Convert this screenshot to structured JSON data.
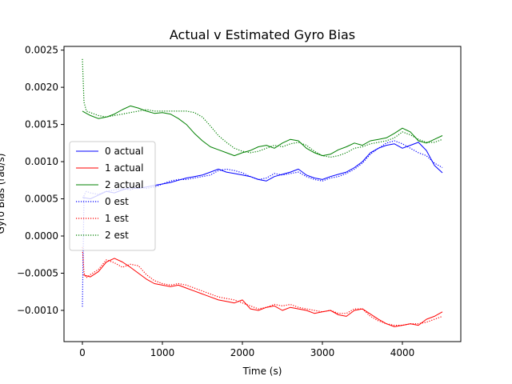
{
  "chart_data": {
    "type": "line",
    "title": "Actual v Estimated Gyro Bias",
    "xlabel": "Time (s)",
    "ylabel": "Gyro Bias (rad/s)",
    "xlim": [
      -230,
      4730
    ],
    "ylim": [
      -0.00142,
      0.00255
    ],
    "xticks": [
      0,
      1000,
      2000,
      3000,
      4000
    ],
    "xtick_labels": [
      "0",
      "1000",
      "2000",
      "3000",
      "4000"
    ],
    "yticks": [
      -0.001,
      -0.0005,
      0.0,
      0.0005,
      0.001,
      0.0015,
      0.002,
      0.0025
    ],
    "ytick_labels": [
      "−0.0010",
      "−0.0005",
      "0.0000",
      "0.0005",
      "0.0010",
      "0.0015",
      "0.0020",
      "0.0025"
    ],
    "grid": false,
    "legend_position": "center-left",
    "series": [
      {
        "name": "0 actual",
        "color": "#0000ff",
        "style": "solid",
        "x": [
          0,
          100,
          200,
          300,
          400,
          500,
          600,
          700,
          800,
          900,
          1000,
          1100,
          1200,
          1300,
          1400,
          1500,
          1600,
          1700,
          1800,
          1900,
          2000,
          2100,
          2200,
          2300,
          2400,
          2500,
          2600,
          2700,
          2800,
          2900,
          3000,
          3100,
          3200,
          3300,
          3400,
          3500,
          3600,
          3700,
          3800,
          3900,
          4000,
          4100,
          4200,
          4300,
          4400,
          4500
        ],
        "y": [
          0.00052,
          0.0005,
          0.00055,
          0.0006,
          0.00058,
          0.00062,
          0.00065,
          0.00064,
          0.00066,
          0.00068,
          0.0007,
          0.00072,
          0.00075,
          0.00078,
          0.0008,
          0.00082,
          0.00086,
          0.0009,
          0.00086,
          0.00084,
          0.00082,
          0.0008,
          0.00076,
          0.00074,
          0.0008,
          0.00083,
          0.00086,
          0.0009,
          0.00082,
          0.00078,
          0.00076,
          0.0008,
          0.00083,
          0.00086,
          0.00092,
          0.001,
          0.00112,
          0.00118,
          0.00122,
          0.00124,
          0.00118,
          0.00122,
          0.00126,
          0.00115,
          0.00095,
          0.00085
        ]
      },
      {
        "name": "1 actual",
        "color": "#ff0000",
        "style": "solid",
        "x": [
          0,
          100,
          200,
          300,
          400,
          500,
          600,
          700,
          800,
          900,
          1000,
          1100,
          1200,
          1300,
          1400,
          1500,
          1600,
          1700,
          1800,
          1900,
          2000,
          2100,
          2200,
          2300,
          2400,
          2500,
          2600,
          2700,
          2800,
          2900,
          3000,
          3100,
          3200,
          3300,
          3400,
          3500,
          3600,
          3700,
          3800,
          3900,
          4000,
          4100,
          4200,
          4300,
          4400,
          4500
        ],
        "y": [
          -0.00052,
          -0.00055,
          -0.00048,
          -0.00035,
          -0.0003,
          -0.00035,
          -0.00042,
          -0.0005,
          -0.00058,
          -0.00064,
          -0.00066,
          -0.00068,
          -0.00066,
          -0.0007,
          -0.00074,
          -0.00078,
          -0.00082,
          -0.00086,
          -0.00088,
          -0.0009,
          -0.00086,
          -0.00098,
          -0.001,
          -0.00096,
          -0.00094,
          -0.001,
          -0.00096,
          -0.00098,
          -0.001,
          -0.00104,
          -0.00102,
          -0.001,
          -0.00106,
          -0.00108,
          -0.001,
          -0.00098,
          -0.00105,
          -0.00112,
          -0.00118,
          -0.00122,
          -0.0012,
          -0.00118,
          -0.0012,
          -0.00112,
          -0.00108,
          -0.00102
        ]
      },
      {
        "name": "2 actual",
        "color": "#008000",
        "style": "solid",
        "x": [
          0,
          100,
          200,
          300,
          400,
          500,
          600,
          700,
          800,
          900,
          1000,
          1100,
          1200,
          1300,
          1400,
          1500,
          1600,
          1700,
          1800,
          1900,
          2000,
          2100,
          2200,
          2300,
          2400,
          2500,
          2600,
          2700,
          2800,
          2900,
          3000,
          3100,
          3200,
          3300,
          3400,
          3500,
          3600,
          3700,
          3800,
          3900,
          4000,
          4100,
          4200,
          4300,
          4400,
          4500
        ],
        "y": [
          0.00168,
          0.00162,
          0.00158,
          0.0016,
          0.00164,
          0.0017,
          0.00175,
          0.00172,
          0.00168,
          0.00165,
          0.00166,
          0.00164,
          0.00158,
          0.0015,
          0.00138,
          0.00128,
          0.0012,
          0.00116,
          0.00112,
          0.00108,
          0.00112,
          0.00115,
          0.0012,
          0.00122,
          0.00118,
          0.00125,
          0.0013,
          0.00128,
          0.00118,
          0.00112,
          0.00108,
          0.0011,
          0.00116,
          0.0012,
          0.00125,
          0.00122,
          0.00128,
          0.0013,
          0.00132,
          0.00138,
          0.00145,
          0.0014,
          0.00128,
          0.00125,
          0.0013,
          0.00135
        ]
      },
      {
        "name": "0 est",
        "color": "#0000ff",
        "style": "dotted",
        "x": [
          0,
          20,
          50,
          100,
          200,
          300,
          400,
          500,
          600,
          700,
          800,
          900,
          1000,
          1100,
          1200,
          1300,
          1400,
          1500,
          1600,
          1700,
          1800,
          1900,
          2000,
          2100,
          2200,
          2300,
          2400,
          2500,
          2600,
          2700,
          2800,
          2900,
          3000,
          3100,
          3200,
          3300,
          3400,
          3500,
          3600,
          3700,
          3800,
          3900,
          4000,
          4100,
          4200,
          4300,
          4400,
          4500
        ],
        "y": [
          -0.00095,
          0.00055,
          0.0006,
          0.00058,
          0.00056,
          0.0006,
          0.00062,
          0.00064,
          0.00062,
          0.00066,
          0.00064,
          0.00066,
          0.0007,
          0.00074,
          0.00076,
          0.00076,
          0.00078,
          0.0008,
          0.00082,
          0.00088,
          0.0009,
          0.00088,
          0.00085,
          0.0008,
          0.00076,
          0.00078,
          0.00084,
          0.00082,
          0.00084,
          0.00086,
          0.0008,
          0.00076,
          0.00074,
          0.00078,
          0.0008,
          0.00084,
          0.0009,
          0.00098,
          0.0011,
          0.00118,
          0.00125,
          0.00128,
          0.00124,
          0.00118,
          0.00112,
          0.00108,
          0.00098,
          0.00092
        ]
      },
      {
        "name": "1 est",
        "color": "#ff0000",
        "style": "dotted",
        "x": [
          0,
          20,
          50,
          100,
          200,
          300,
          400,
          500,
          600,
          700,
          800,
          900,
          1000,
          1100,
          1200,
          1300,
          1400,
          1500,
          1600,
          1700,
          1800,
          1900,
          2000,
          2100,
          2200,
          2300,
          2400,
          2500,
          2600,
          2700,
          2800,
          2900,
          3000,
          3100,
          3200,
          3300,
          3400,
          3500,
          3600,
          3700,
          3800,
          3900,
          4000,
          4100,
          4200,
          4300,
          4400,
          4500
        ],
        "y": [
          -0.00015,
          -0.0005,
          -0.00056,
          -0.00052,
          -0.00045,
          -0.00032,
          -0.00036,
          -0.00042,
          -0.00038,
          -0.0004,
          -0.00052,
          -0.0006,
          -0.00064,
          -0.00066,
          -0.00064,
          -0.00066,
          -0.0007,
          -0.00074,
          -0.00078,
          -0.00082,
          -0.00084,
          -0.00086,
          -0.0009,
          -0.00094,
          -0.00098,
          -0.00096,
          -0.00092,
          -0.00094,
          -0.00092,
          -0.00096,
          -0.00098,
          -0.001,
          -0.00102,
          -0.001,
          -0.00104,
          -0.00104,
          -0.00098,
          -0.00098,
          -0.00108,
          -0.00114,
          -0.00118,
          -0.0012,
          -0.0012,
          -0.00118,
          -0.00118,
          -0.00116,
          -0.00112,
          -0.00108
        ]
      },
      {
        "name": "2 est",
        "color": "#008000",
        "style": "dotted",
        "x": [
          0,
          20,
          50,
          100,
          200,
          300,
          400,
          500,
          600,
          700,
          800,
          900,
          1000,
          1100,
          1200,
          1300,
          1400,
          1500,
          1600,
          1700,
          1800,
          1900,
          2000,
          2100,
          2200,
          2300,
          2400,
          2500,
          2600,
          2700,
          2800,
          2900,
          3000,
          3100,
          3200,
          3300,
          3400,
          3500,
          3600,
          3700,
          3800,
          3900,
          4000,
          4100,
          4200,
          4300,
          4400,
          4500
        ],
        "y": [
          0.00238,
          0.0018,
          0.00168,
          0.00166,
          0.00162,
          0.0016,
          0.00162,
          0.00164,
          0.00166,
          0.00168,
          0.0017,
          0.00168,
          0.00168,
          0.00168,
          0.00168,
          0.00168,
          0.00166,
          0.0016,
          0.00148,
          0.00135,
          0.00126,
          0.00118,
          0.00114,
          0.00112,
          0.00114,
          0.00118,
          0.00122,
          0.0012,
          0.00124,
          0.00126,
          0.00122,
          0.00114,
          0.00108,
          0.00106,
          0.00108,
          0.00112,
          0.00118,
          0.0012,
          0.00124,
          0.00126,
          0.00128,
          0.00132,
          0.0014,
          0.00136,
          0.0013,
          0.00126,
          0.00126,
          0.0013
        ]
      }
    ]
  }
}
